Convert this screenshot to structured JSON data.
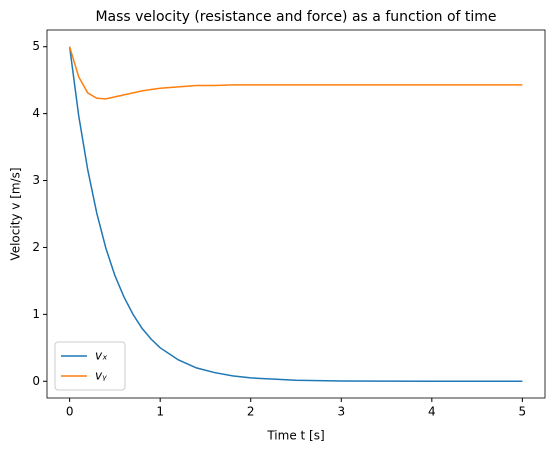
{
  "chart_data": {
    "type": "line",
    "title": "Mass velocity (resistance and force) as a function of time",
    "x_label": "Time t [s]",
    "y_label": "Velocity v [m/s]",
    "x": [
      0,
      0.1,
      0.2,
      0.3,
      0.4,
      0.5,
      0.6,
      0.7,
      0.8,
      0.9,
      1.0,
      1.2,
      1.4,
      1.6,
      1.8,
      2.0,
      2.5,
      3.0,
      3.5,
      4.0,
      4.5,
      5.0
    ],
    "series": [
      {
        "name": "vₓ",
        "color": "#1f77b4",
        "values": [
          5,
          3.97,
          3.16,
          2.51,
          1.99,
          1.58,
          1.26,
          1.0,
          0.79,
          0.63,
          0.5,
          0.32,
          0.2,
          0.13,
          0.08,
          0.05,
          0.016,
          0.005,
          0.002,
          0.0005,
          0,
          0
        ]
      },
      {
        "name": "vᵧ",
        "color": "#ff7f0e",
        "values": [
          5,
          4.55,
          4.31,
          4.23,
          4.22,
          4.25,
          4.28,
          4.31,
          4.34,
          4.36,
          4.38,
          4.4,
          4.42,
          4.42,
          4.43,
          4.43,
          4.43,
          4.43,
          4.43,
          4.43,
          4.43,
          4.43
        ]
      }
    ],
    "xlim": [
      -0.25,
      5.25
    ],
    "ylim": [
      -0.25,
      5.25
    ],
    "xticks": [
      0,
      1,
      2,
      3,
      4,
      5
    ],
    "yticks": [
      0,
      1,
      2,
      3,
      4,
      5
    ],
    "legend": "lower left"
  }
}
